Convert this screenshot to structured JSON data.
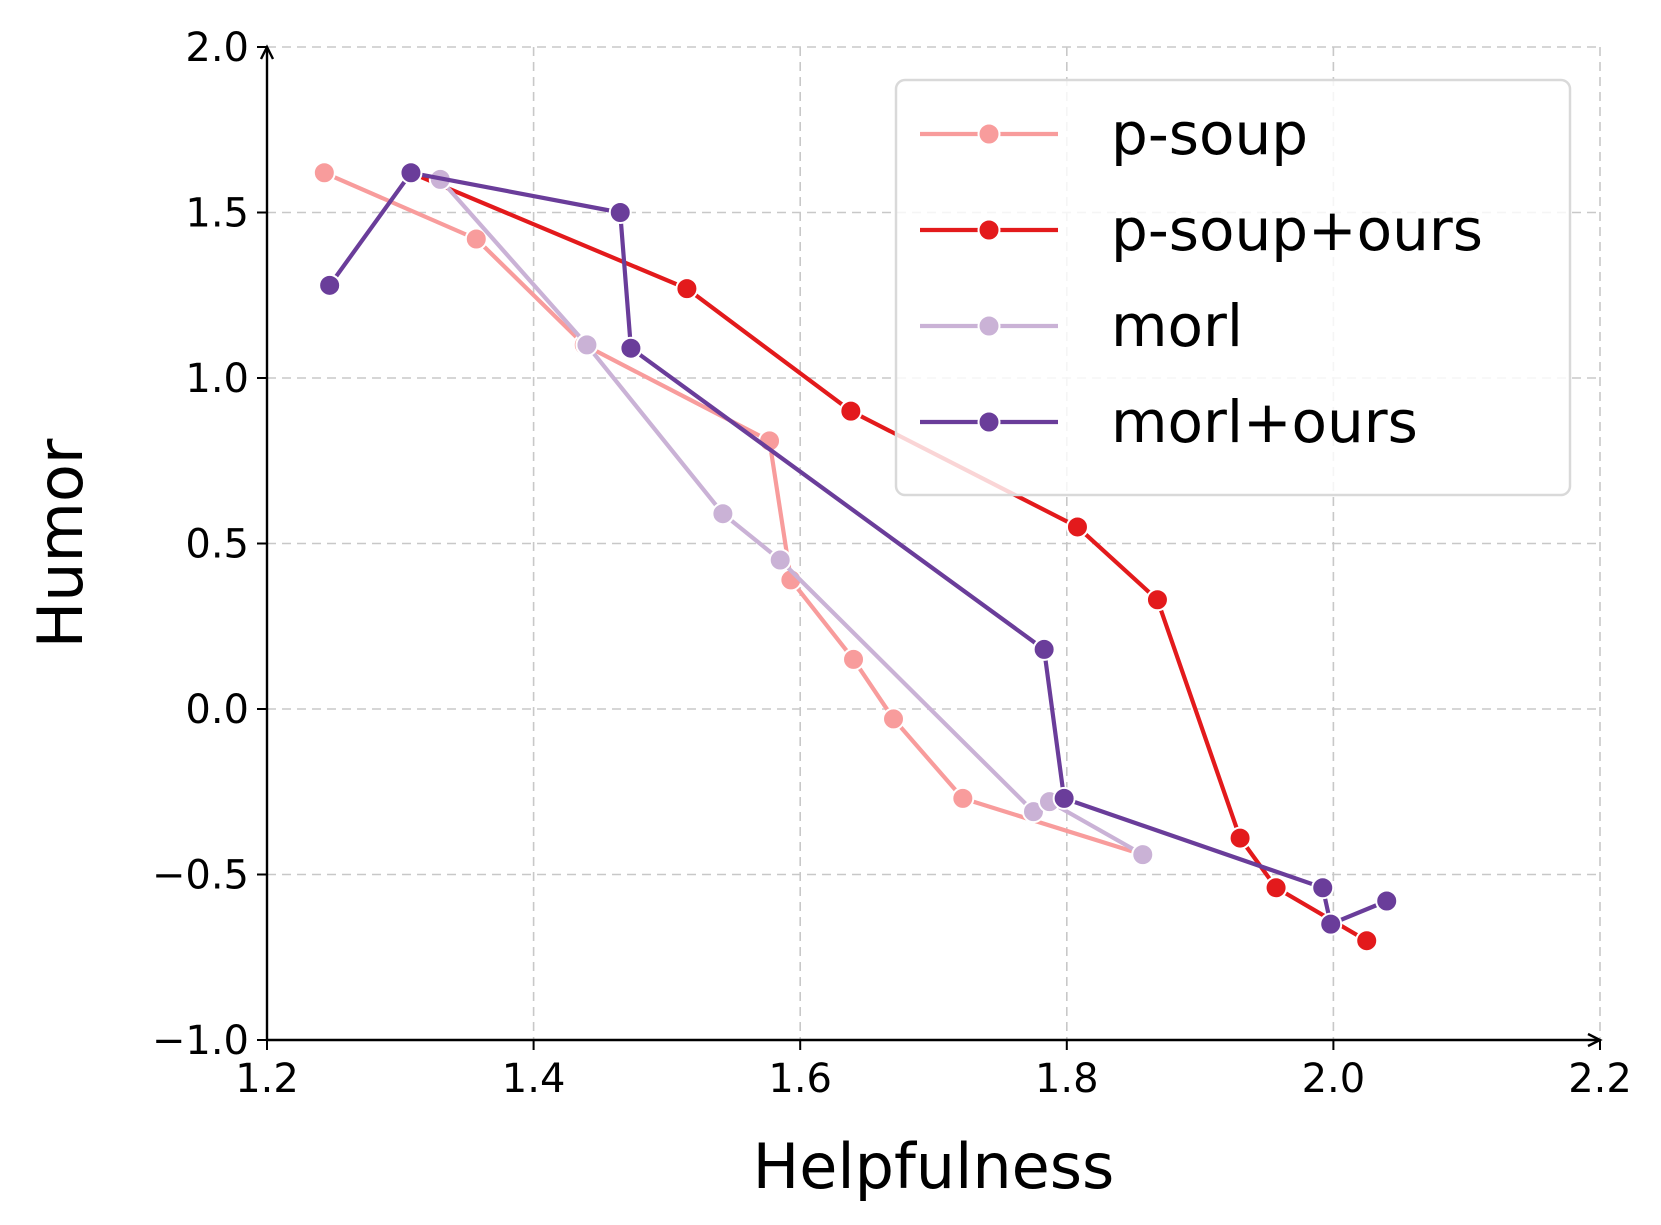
{
  "chart_data": {
    "type": "line",
    "title": "",
    "xlabel": "Helpfulness",
    "ylabel": "Humor",
    "xlim": [
      1.2,
      2.2
    ],
    "ylim": [
      -1.0,
      2.0
    ],
    "xticks": [
      1.2,
      1.4,
      1.6,
      1.8,
      2.0,
      2.2
    ],
    "xtick_labels": [
      "1.2",
      "1.4",
      "1.6",
      "1.8",
      "2.0",
      "2.2"
    ],
    "yticks": [
      -1.0,
      -0.5,
      0.0,
      0.5,
      1.0,
      1.5,
      2.0
    ],
    "ytick_labels": [
      "−1.0",
      "−0.5",
      "0.0",
      "0.5",
      "1.0",
      "1.5",
      "2.0"
    ],
    "grid": true,
    "legend_position": "top-right",
    "series": [
      {
        "name": "p-soup",
        "color": "#f89c9c",
        "points": [
          [
            1.243,
            1.62
          ],
          [
            1.357,
            1.42
          ],
          [
            1.438,
            1.1
          ],
          [
            1.577,
            0.81
          ],
          [
            1.593,
            0.39
          ],
          [
            1.64,
            0.15
          ],
          [
            1.67,
            -0.03
          ],
          [
            1.722,
            -0.27
          ],
          [
            1.857,
            -0.44
          ]
        ]
      },
      {
        "name": "p-soup+ours",
        "color": "#e31a1c",
        "points": [
          [
            1.308,
            1.62
          ],
          [
            1.515,
            1.27
          ],
          [
            1.638,
            0.9
          ],
          [
            1.808,
            0.55
          ],
          [
            1.868,
            0.33
          ],
          [
            1.93,
            -0.39
          ],
          [
            1.957,
            -0.54
          ],
          [
            2.025,
            -0.7
          ]
        ]
      },
      {
        "name": "morl",
        "color": "#cab2d6",
        "points": [
          [
            1.33,
            1.6
          ],
          [
            1.44,
            1.1
          ],
          [
            1.542,
            0.59
          ],
          [
            1.585,
            0.45
          ],
          [
            1.775,
            -0.31
          ],
          [
            1.787,
            -0.28
          ],
          [
            1.857,
            -0.44
          ]
        ]
      },
      {
        "name": "morl+ours",
        "color": "#6a3d9a",
        "points": [
          [
            1.247,
            1.28
          ],
          [
            1.308,
            1.62
          ],
          [
            1.465,
            1.5
          ],
          [
            1.473,
            1.09
          ],
          [
            1.783,
            0.18
          ],
          [
            1.798,
            -0.27
          ],
          [
            1.992,
            -0.54
          ],
          [
            1.998,
            -0.65
          ],
          [
            2.04,
            -0.58
          ]
        ]
      }
    ]
  }
}
